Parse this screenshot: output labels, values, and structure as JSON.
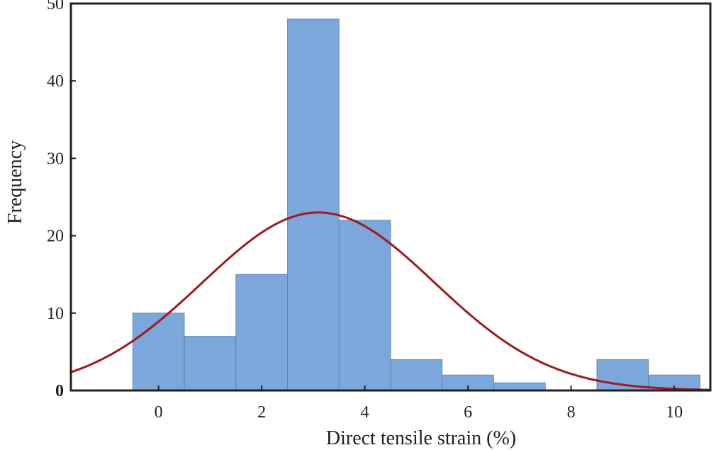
{
  "chart_data": {
    "type": "bar",
    "subtype": "histogram",
    "xlabel": "Direct tensile strain (%)",
    "ylabel": "Frequency",
    "xlim": [
      -1.7,
      10.7
    ],
    "ylim": [
      0,
      50
    ],
    "x_ticks": [
      0,
      2,
      4,
      6,
      8,
      10
    ],
    "y_ticks": [
      0,
      10,
      20,
      30,
      40,
      50
    ],
    "grid": false,
    "legend": "none",
    "bins": [
      {
        "start": -0.5,
        "end": 0.5,
        "value": 10
      },
      {
        "start": 0.5,
        "end": 1.5,
        "value": 7
      },
      {
        "start": 1.5,
        "end": 2.5,
        "value": 15
      },
      {
        "start": 2.5,
        "end": 3.5,
        "value": 48
      },
      {
        "start": 3.5,
        "end": 4.5,
        "value": 22
      },
      {
        "start": 4.5,
        "end": 5.5,
        "value": 4
      },
      {
        "start": 5.5,
        "end": 6.5,
        "value": 2
      },
      {
        "start": 6.5,
        "end": 7.5,
        "value": 1
      },
      {
        "start": 7.5,
        "end": 8.5,
        "value": 0
      },
      {
        "start": 8.5,
        "end": 9.5,
        "value": 4
      },
      {
        "start": 9.5,
        "end": 10.5,
        "value": 2
      }
    ],
    "fit_curve": {
      "type": "normal",
      "mean": 3.1,
      "sd": 2.25,
      "peak": 23
    },
    "colors": {
      "bar_fill": "#7ba7da",
      "bar_stroke": "#5b7fa8",
      "curve": "#9b1b20",
      "axis": "#231f20"
    }
  }
}
